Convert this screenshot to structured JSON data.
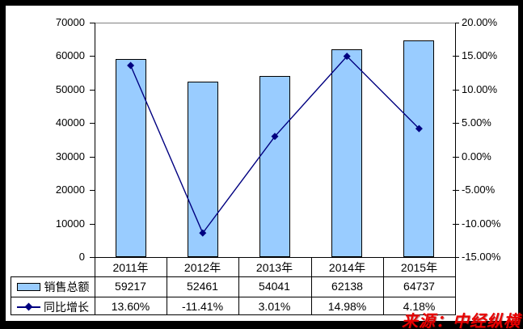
{
  "source_note": "来源：中经纵横",
  "chart_data": {
    "type": "combo bar+line",
    "title": "",
    "categories": [
      "2011年",
      "2012年",
      "2013年",
      "2014年",
      "2015年"
    ],
    "series": [
      {
        "name": "销售总额",
        "type": "bar",
        "axis": "left",
        "values": [
          59217,
          52461,
          54041,
          62138,
          64737
        ],
        "labels": [
          "59217",
          "52461",
          "54041",
          "62138",
          "64737"
        ]
      },
      {
        "name": "同比增长",
        "type": "line",
        "axis": "right",
        "marker": "diamond",
        "values": [
          13.6,
          -11.41,
          3.01,
          14.98,
          4.18
        ],
        "labels": [
          "13.60%",
          "-11.41%",
          "3.01%",
          "14.98%",
          "4.18%"
        ]
      }
    ],
    "left_axis": {
      "min": 0,
      "max": 70000,
      "step": 10000,
      "ticks": [
        "70000",
        "60000",
        "50000",
        "40000",
        "30000",
        "20000",
        "10000",
        "0"
      ]
    },
    "right_axis": {
      "min": -15,
      "max": 20,
      "step": 5,
      "ticks": [
        "20.00%",
        "15.00%",
        "10.00%",
        "5.00%",
        "0.00%",
        "-5.00%",
        "-10.00%",
        "-15.00%"
      ]
    },
    "grid": false,
    "legend_position": "bottom-left table"
  },
  "colors": {
    "bar_fill": "#99CCFF",
    "bar_border": "#000000",
    "line": "#000080",
    "axis_line": "#000000",
    "plot_top_border": "#808080",
    "axis_text": "#000000",
    "source_text": "#E80000",
    "frame": "#000000",
    "background": "#FFFFFF"
  }
}
